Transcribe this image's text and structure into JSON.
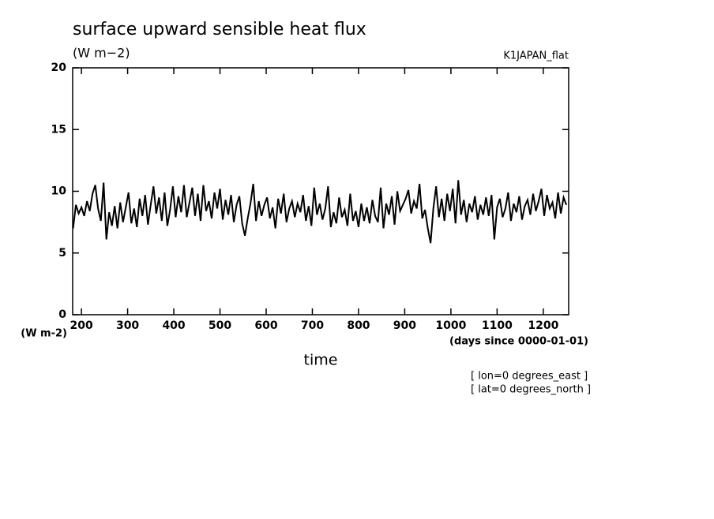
{
  "chart_data": {
    "type": "line",
    "title": "surface upward sensible heat flux",
    "subtitle": "(W m−2)",
    "dataset": "K1JAPAN_flat",
    "y_units": "(W m-2)",
    "x_units": "(days since 0000-01-01)",
    "xlabel": "time",
    "annotations": [
      "[ lon=0 degrees_east ]",
      "[ lat=0 degrees_north ]"
    ],
    "color": "#000000",
    "xlim": [
      181,
      1255
    ],
    "xticks": [
      200,
      300,
      400,
      500,
      600,
      700,
      800,
      900,
      1000,
      1100,
      1200
    ],
    "ylim": [
      0,
      20
    ],
    "yticks": [
      0,
      5,
      10,
      15,
      20
    ],
    "x": [
      182,
      188,
      194,
      200,
      206,
      212,
      218,
      224,
      230,
      236,
      242,
      248,
      254,
      260,
      266,
      272,
      278,
      284,
      290,
      296,
      302,
      308,
      314,
      320,
      326,
      332,
      338,
      344,
      350,
      356,
      362,
      368,
      374,
      380,
      386,
      392,
      398,
      404,
      410,
      416,
      422,
      428,
      434,
      440,
      446,
      452,
      458,
      464,
      470,
      476,
      482,
      488,
      494,
      500,
      506,
      512,
      518,
      524,
      530,
      536,
      542,
      548,
      554,
      560,
      566,
      572,
      578,
      584,
      590,
      596,
      602,
      608,
      614,
      620,
      626,
      632,
      638,
      644,
      650,
      656,
      662,
      668,
      674,
      680,
      686,
      692,
      698,
      704,
      710,
      716,
      722,
      728,
      734,
      740,
      746,
      752,
      758,
      764,
      770,
      776,
      782,
      788,
      794,
      800,
      806,
      812,
      818,
      824,
      830,
      836,
      842,
      848,
      854,
      860,
      866,
      872,
      878,
      884,
      890,
      896,
      902,
      908,
      914,
      920,
      926,
      932,
      938,
      944,
      950,
      956,
      962,
      968,
      974,
      980,
      986,
      992,
      998,
      1004,
      1010,
      1016,
      1022,
      1028,
      1034,
      1040,
      1046,
      1052,
      1058,
      1064,
      1070,
      1076,
      1082,
      1088,
      1094,
      1100,
      1106,
      1112,
      1118,
      1124,
      1130,
      1136,
      1142,
      1148,
      1154,
      1160,
      1166,
      1172,
      1178,
      1184,
      1190,
      1196,
      1202,
      1208,
      1214,
      1220,
      1226,
      1232,
      1238,
      1244,
      1250
    ],
    "values": [
      7.0,
      8.9,
      8.2,
      8.7,
      8.0,
      9.2,
      8.4,
      9.8,
      10.5,
      8.6,
      7.6,
      10.7,
      6.1,
      8.3,
      7.2,
      8.8,
      7.0,
      9.1,
      7.5,
      8.7,
      9.9,
      7.4,
      8.6,
      7.1,
      9.4,
      8.0,
      9.7,
      7.3,
      8.9,
      10.4,
      8.2,
      9.5,
      7.6,
      9.9,
      7.2,
      8.5,
      10.4,
      7.9,
      9.6,
      8.3,
      10.5,
      7.9,
      9.1,
      10.3,
      8.0,
      9.8,
      7.6,
      10.5,
      8.4,
      9.2,
      7.8,
      9.9,
      8.6,
      10.2,
      7.7,
      9.3,
      8.1,
      9.7,
      7.5,
      8.9,
      9.6,
      7.4,
      6.4,
      7.8,
      9.0,
      10.6,
      7.6,
      9.2,
      8.0,
      8.9,
      9.5,
      7.8,
      8.7,
      7.0,
      9.4,
      8.2,
      9.8,
      7.5,
      8.6,
      9.2,
      7.9,
      9.0,
      8.3,
      9.7,
      7.6,
      8.8,
      7.2,
      10.3,
      8.1,
      9.0,
      7.7,
      8.6,
      10.4,
      7.1,
      8.3,
      7.4,
      9.5,
      7.9,
      8.5,
      7.2,
      9.8,
      7.6,
      8.4,
      7.1,
      9.0,
      7.6,
      8.7,
      7.4,
      9.3,
      8.0,
      7.5,
      10.3,
      7.0,
      9.0,
      8.1,
      9.6,
      7.3,
      10.0,
      8.4,
      8.9,
      9.4,
      10.1,
      8.2,
      9.2,
      8.6,
      10.6,
      7.8,
      8.5,
      7.0,
      5.8,
      8.6,
      10.4,
      7.9,
      9.4,
      7.6,
      9.8,
      8.4,
      10.2,
      7.4,
      10.9,
      8.1,
      9.3,
      7.5,
      9.0,
      8.3,
      9.6,
      7.7,
      8.9,
      8.1,
      9.5,
      8.0,
      9.7,
      6.1,
      8.7,
      9.4,
      7.9,
      8.6,
      9.9,
      7.6,
      9.0,
      8.3,
      9.6,
      7.7,
      8.8,
      9.3,
      8.1,
      9.8,
      8.4,
      9.2,
      10.2,
      8.0,
      9.7,
      8.6,
      9.1,
      7.8,
      9.9,
      8.2,
      9.5,
      8.9
    ]
  }
}
